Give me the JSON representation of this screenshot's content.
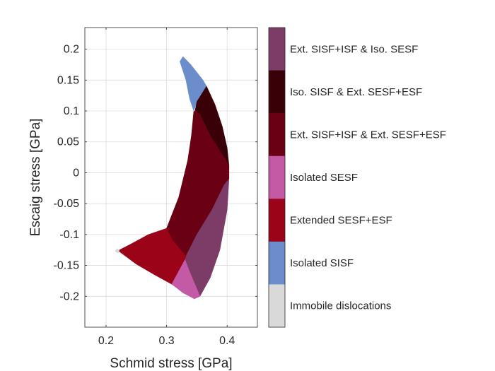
{
  "chart_data": {
    "type": "scatter",
    "title": "",
    "xlabel": "Schmid stress [GPa]",
    "ylabel": "Escaig stress [GPa]",
    "xlim": [
      0.165,
      0.45
    ],
    "ylim": [
      -0.25,
      0.235
    ],
    "xticks": [
      0.2,
      0.3,
      0.4
    ],
    "yticks": [
      0.2,
      0.15,
      0.1,
      0.05,
      0,
      -0.05,
      -0.1,
      -0.15,
      -0.2
    ],
    "xtick_labels": [
      "0.2",
      "0.3",
      "0.4"
    ],
    "ytick_labels": [
      "0.2",
      "0.15",
      "0.1",
      "0.05",
      "0",
      "-0.05",
      "-0.1",
      "-0.15",
      "-0.2"
    ],
    "grid": true,
    "colorbar": {
      "placement": "right",
      "categories": [
        {
          "label": "Ext. SISF+ISF & Iso. SESF",
          "color": "#7d3c68"
        },
        {
          "label": "Iso. SISF & Ext. SESF+ESF",
          "color": "#3a0008"
        },
        {
          "label": "Ext. SISF+ISF & Ext. SESF+ESF",
          "color": "#6a0014"
        },
        {
          "label": "Isolated SESF",
          "color": "#c45aa6"
        },
        {
          "label": "Extended SESF+ESF",
          "color": "#9b0319"
        },
        {
          "label": "Isolated SISF",
          "color": "#6c8dcc"
        },
        {
          "label": "Immobile dislocations",
          "color": "#d9d9d9"
        }
      ]
    },
    "regions": [
      {
        "category": "Isolated SISF",
        "color": "#6c8dcc",
        "boundary": [
          [
            0.327,
            0.188
          ],
          [
            0.34,
            0.175
          ],
          [
            0.352,
            0.16
          ],
          [
            0.36,
            0.15
          ],
          [
            0.366,
            0.14
          ],
          [
            0.35,
            0.115
          ],
          [
            0.345,
            0.1
          ],
          [
            0.338,
            0.12
          ],
          [
            0.332,
            0.15
          ],
          [
            0.322,
            0.18
          ]
        ]
      },
      {
        "category": "Iso. SISF & Ext. SESF+ESF",
        "color": "#3a0008",
        "boundary": [
          [
            0.366,
            0.14
          ],
          [
            0.38,
            0.11
          ],
          [
            0.392,
            0.075
          ],
          [
            0.4,
            0.04
          ],
          [
            0.403,
            0.012
          ],
          [
            0.385,
            0.04
          ],
          [
            0.372,
            0.06
          ],
          [
            0.362,
            0.08
          ],
          [
            0.355,
            0.095
          ],
          [
            0.347,
            0.1
          ],
          [
            0.35,
            0.115
          ]
        ]
      },
      {
        "category": "Ext. SISF+ISF & Ext. SESF+ESF",
        "color": "#6a0014",
        "boundary": [
          [
            0.345,
            0.1
          ],
          [
            0.355,
            0.095
          ],
          [
            0.362,
            0.08
          ],
          [
            0.372,
            0.06
          ],
          [
            0.385,
            0.04
          ],
          [
            0.403,
            0.012
          ],
          [
            0.403,
            -0.01
          ],
          [
            0.395,
            -0.02
          ],
          [
            0.375,
            -0.06
          ],
          [
            0.35,
            -0.1
          ],
          [
            0.332,
            -0.135
          ],
          [
            0.31,
            -0.11
          ],
          [
            0.3,
            -0.09
          ],
          [
            0.32,
            -0.04
          ],
          [
            0.335,
            0.02
          ],
          [
            0.341,
            0.06
          ]
        ]
      },
      {
        "category": "Ext. SISF+ISF & Iso. SESF",
        "color": "#7d3c68",
        "boundary": [
          [
            0.403,
            -0.01
          ],
          [
            0.4,
            -0.06
          ],
          [
            0.388,
            -0.125
          ],
          [
            0.372,
            -0.17
          ],
          [
            0.355,
            -0.2
          ],
          [
            0.337,
            -0.158
          ],
          [
            0.33,
            -0.14
          ],
          [
            0.332,
            -0.135
          ],
          [
            0.35,
            -0.1
          ],
          [
            0.375,
            -0.06
          ],
          [
            0.395,
            -0.02
          ]
        ]
      },
      {
        "category": "Isolated SESF",
        "color": "#c45aa6",
        "boundary": [
          [
            0.33,
            -0.14
          ],
          [
            0.337,
            -0.158
          ],
          [
            0.355,
            -0.2
          ],
          [
            0.346,
            -0.204
          ],
          [
            0.328,
            -0.195
          ],
          [
            0.308,
            -0.18
          ]
        ]
      },
      {
        "category": "Extended SESF+ESF",
        "color": "#9b0319",
        "boundary": [
          [
            0.3,
            -0.09
          ],
          [
            0.31,
            -0.11
          ],
          [
            0.332,
            -0.135
          ],
          [
            0.33,
            -0.14
          ],
          [
            0.308,
            -0.18
          ],
          [
            0.28,
            -0.165
          ],
          [
            0.25,
            -0.148
          ],
          [
            0.22,
            -0.126
          ],
          [
            0.24,
            -0.116
          ],
          [
            0.27,
            -0.1
          ]
        ]
      },
      {
        "category": "Immobile dislocations",
        "color": "#d9d9d9",
        "boundary": [
          [
            0.215,
            -0.127
          ],
          [
            0.218,
            -0.123
          ],
          [
            0.222,
            -0.125
          ],
          [
            0.22,
            -0.13
          ]
        ]
      }
    ]
  }
}
